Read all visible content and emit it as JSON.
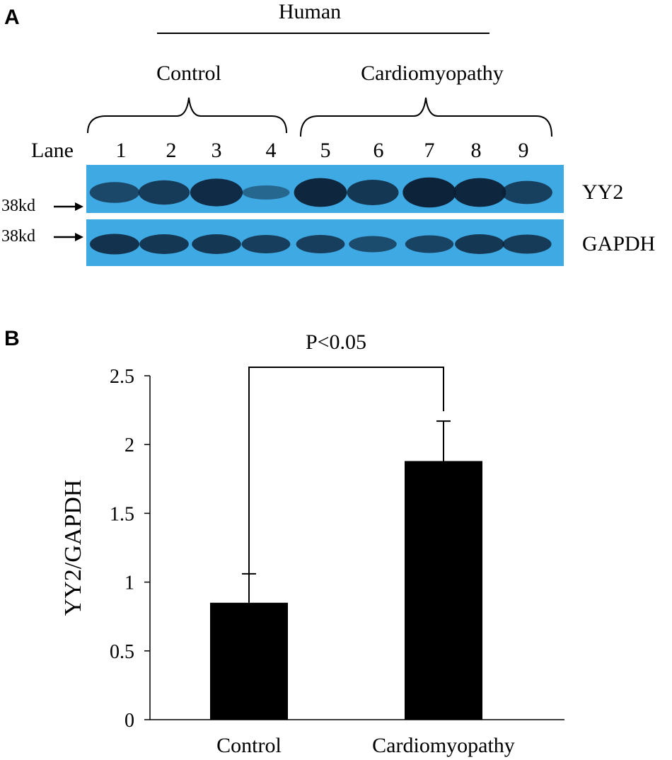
{
  "panel_a": {
    "letter": "A",
    "species": "Human",
    "groups": [
      {
        "label": "Control",
        "lanes": [
          "1",
          "2",
          "3",
          "4"
        ]
      },
      {
        "label": "Cardiomyopathy",
        "lanes": [
          "5",
          "6",
          "7",
          "8",
          "9"
        ]
      }
    ],
    "lane_label": "Lane",
    "blots": [
      {
        "name": "YY2",
        "marker": "38kd",
        "band_intensity": [
          0.55,
          0.7,
          0.85,
          0.25,
          0.9,
          0.75,
          0.95,
          0.9,
          0.65
        ]
      },
      {
        "name": "GAPDH",
        "marker": "38kd",
        "band_intensity": [
          0.75,
          0.7,
          0.7,
          0.6,
          0.6,
          0.45,
          0.55,
          0.7,
          0.65
        ]
      }
    ],
    "colors": {
      "membrane": "#3fa9e3",
      "band": "#0b1d33"
    }
  },
  "panel_b": {
    "letter": "B"
  },
  "chart_data": {
    "type": "bar",
    "categories": [
      "Control",
      "Cardiomyopathy"
    ],
    "values": [
      0.85,
      1.88
    ],
    "error": [
      0.21,
      0.29
    ],
    "ylabel": "YY2/GAPDH",
    "ylim": [
      0,
      2.5
    ],
    "yticks": [
      "0",
      "0.5",
      "1",
      "1.5",
      "2",
      "2.5"
    ],
    "significance": "P<0.05",
    "bar_color": "#000000",
    "grid": false
  }
}
